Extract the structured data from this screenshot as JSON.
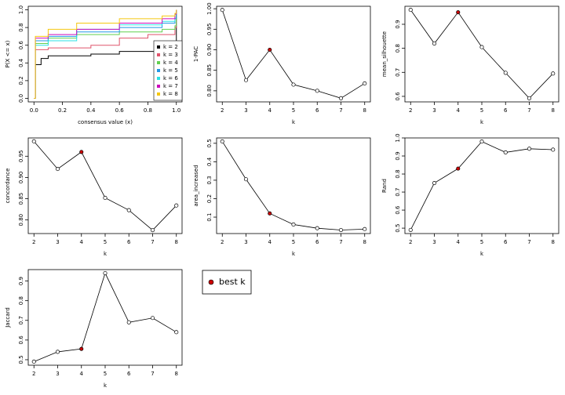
{
  "chart_data": [
    {
      "type": "step",
      "xlabel": "consensus value (x)",
      "ylabel": "P(X <= x)",
      "xlim": [
        -0.04,
        1.04
      ],
      "ylim": [
        -0.04,
        1.04
      ],
      "xticks": [
        {
          "value": 0,
          "label": "0.0"
        },
        {
          "value": 0.2,
          "label": "0.2"
        },
        {
          "value": 0.4,
          "label": "0.4"
        },
        {
          "value": 0.6,
          "label": "0.6"
        },
        {
          "value": 0.8,
          "label": "0.8"
        },
        {
          "value": 1,
          "label": "1.0"
        }
      ],
      "yticks": [
        {
          "value": 0,
          "label": "0.0"
        },
        {
          "value": 0.2,
          "label": "0.2"
        },
        {
          "value": 0.4,
          "label": "0.4"
        },
        {
          "value": 0.6,
          "label": "0.6"
        },
        {
          "value": 0.8,
          "label": "0.8"
        },
        {
          "value": 1,
          "label": "1.0"
        }
      ],
      "legend": "bottomright",
      "series": [
        {
          "name": "k = 2",
          "color": "#000000",
          "x": [
            0,
            0.01,
            0.05,
            0.1,
            0.4,
            0.6,
            0.99,
            1
          ],
          "values": [
            0,
            0.38,
            0.45,
            0.48,
            0.5,
            0.53,
            0.55,
            1
          ]
        },
        {
          "name": "k = 3",
          "color": "#DF536B",
          "x": [
            0,
            0.01,
            0.1,
            0.4,
            0.6,
            0.8,
            0.99,
            1
          ],
          "values": [
            0,
            0.55,
            0.57,
            0.6,
            0.68,
            0.72,
            0.8,
            1
          ]
        },
        {
          "name": "k = 4",
          "color": "#61D04F",
          "x": [
            0,
            0.01,
            0.1,
            0.3,
            0.6,
            0.9,
            0.99,
            1
          ],
          "values": [
            0,
            0.62,
            0.68,
            0.72,
            0.75,
            0.78,
            0.82,
            1
          ]
        },
        {
          "name": "k = 5",
          "color": "#2297E6",
          "x": [
            0,
            0.01,
            0.1,
            0.3,
            0.6,
            0.9,
            0.99,
            1
          ],
          "values": [
            0,
            0.65,
            0.7,
            0.75,
            0.8,
            0.85,
            0.9,
            1
          ]
        },
        {
          "name": "k = 6",
          "color": "#28E2E5",
          "x": [
            0,
            0.01,
            0.1,
            0.3,
            0.6,
            0.9,
            0.99,
            1
          ],
          "values": [
            0,
            0.6,
            0.65,
            0.78,
            0.83,
            0.87,
            0.95,
            1
          ]
        },
        {
          "name": "k = 7",
          "color": "#CD0BBC",
          "x": [
            0,
            0.01,
            0.1,
            0.3,
            0.6,
            0.9,
            0.99,
            1
          ],
          "values": [
            0,
            0.68,
            0.72,
            0.78,
            0.85,
            0.9,
            0.95,
            1
          ]
        },
        {
          "name": "k = 8",
          "color": "#F5C710",
          "x": [
            0,
            0.01,
            0.1,
            0.3,
            0.6,
            0.9,
            0.99,
            1
          ],
          "values": [
            0,
            0.7,
            0.78,
            0.85,
            0.9,
            0.93,
            0.96,
            1
          ]
        }
      ]
    },
    {
      "type": "line",
      "xlabel": "k",
      "ylabel": "1-PAC",
      "x": [
        2,
        3,
        4,
        5,
        6,
        7,
        8
      ],
      "values": [
        0.997,
        0.826,
        0.9,
        0.815,
        0.8,
        0.782,
        0.818
      ],
      "best_index": 2,
      "best_color": "#CC0000",
      "xlim": [
        1.76,
        8.24
      ],
      "ylim": [
        0.773,
        1.006
      ],
      "xticks": [
        2,
        3,
        4,
        5,
        6,
        7,
        8
      ],
      "yticks": [
        {
          "value": 0.8,
          "label": "0.80"
        },
        {
          "value": 0.85,
          "label": "0.85"
        },
        {
          "value": 0.9,
          "label": "0.90"
        },
        {
          "value": 0.95,
          "label": "0.95"
        },
        {
          "value": 1,
          "label": "1.00"
        }
      ]
    },
    {
      "type": "line",
      "xlabel": "k",
      "ylabel": "mean_silhouette",
      "x": [
        2,
        3,
        4,
        5,
        6,
        7,
        8
      ],
      "values": [
        0.96,
        0.82,
        0.95,
        0.805,
        0.698,
        0.592,
        0.695
      ],
      "best_index": 2,
      "best_color": "#CC0000",
      "xlim": [
        1.76,
        8.24
      ],
      "ylim": [
        0.577,
        0.975
      ],
      "xticks": [
        2,
        3,
        4,
        5,
        6,
        7,
        8
      ],
      "yticks": [
        0.6,
        0.7,
        0.8,
        0.9
      ]
    },
    {
      "type": "line",
      "xlabel": "k",
      "ylabel": "concordance",
      "x": [
        2,
        3,
        4,
        5,
        6,
        7,
        8
      ],
      "values": [
        0.985,
        0.92,
        0.96,
        0.852,
        0.823,
        0.776,
        0.834
      ],
      "best_index": 2,
      "best_color": "#CC0000",
      "xlim": [
        1.76,
        8.24
      ],
      "ylim": [
        0.768,
        0.993
      ],
      "xticks": [
        2,
        3,
        4,
        5,
        6,
        7,
        8
      ],
      "yticks": [
        {
          "value": 0.8,
          "label": "0.80"
        },
        {
          "value": 0.85,
          "label": "0.85"
        },
        {
          "value": 0.9,
          "label": "0.90"
        },
        {
          "value": 0.95,
          "label": "0.95"
        }
      ]
    },
    {
      "type": "line",
      "xlabel": "k",
      "ylabel": "area_increased",
      "x": [
        2,
        3,
        4,
        5,
        6,
        7,
        8
      ],
      "values": [
        0.51,
        0.305,
        0.12,
        0.06,
        0.04,
        0.03,
        0.035
      ],
      "best_index": 2,
      "best_color": "#CC0000",
      "xlim": [
        1.76,
        8.24
      ],
      "ylim": [
        0.011,
        0.529
      ],
      "xticks": [
        2,
        3,
        4,
        5,
        6,
        7,
        8
      ],
      "yticks": [
        0.1,
        0.2,
        0.3,
        0.4,
        0.5
      ]
    },
    {
      "type": "line",
      "xlabel": "k",
      "ylabel": "Rand",
      "x": [
        2,
        3,
        4,
        5,
        6,
        7,
        8
      ],
      "values": [
        0.49,
        0.75,
        0.83,
        0.98,
        0.92,
        0.94,
        0.935
      ],
      "best_index": 2,
      "best_color": "#CC0000",
      "xlim": [
        1.76,
        8.24
      ],
      "ylim": [
        0.47,
        1.0
      ],
      "xticks": [
        2,
        3,
        4,
        5,
        6,
        7,
        8
      ],
      "yticks": [
        0.5,
        0.6,
        0.7,
        0.8,
        0.9,
        {
          "value": 1,
          "label": "1.0"
        }
      ]
    },
    {
      "type": "line",
      "xlabel": "k",
      "ylabel": "Jaccard",
      "x": [
        2,
        3,
        4,
        5,
        6,
        7,
        8
      ],
      "values": [
        0.49,
        0.54,
        0.555,
        0.94,
        0.69,
        0.712,
        0.64
      ],
      "best_index": 2,
      "best_color": "#CC0000",
      "xlim": [
        1.76,
        8.24
      ],
      "ylim": [
        0.472,
        0.958
      ],
      "xticks": [
        2,
        3,
        4,
        5,
        6,
        7,
        8
      ],
      "yticks": [
        0.5,
        0.6,
        0.7,
        0.8,
        0.9
      ]
    }
  ],
  "best_k_legend": {
    "label": "best k",
    "color": "#CC0000"
  }
}
